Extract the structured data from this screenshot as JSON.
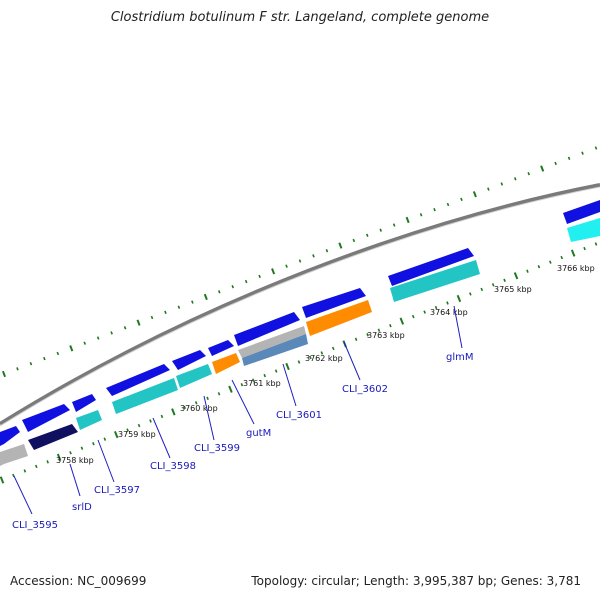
{
  "title": "Clostridium botulinum F str. Langeland, complete genome",
  "footer": {
    "accession": "Accession: NC_009699",
    "summary": "Topology: circular; Length: 3,995,387 bp; Genes: 3,781"
  },
  "colors": {
    "backbone": "#7a7a7a",
    "tick": "#1f7a1f",
    "forward_gene": "#1010e0",
    "cyan_gene": "#22c4c4",
    "bright_cyan_gene": "#22f0f0",
    "orange_gene": "#ff8c00",
    "gray_gene": "#b4b4b4",
    "steelblue_gene": "#5a88b8",
    "navy_gene": "#101060",
    "label": "#1a1ab8"
  },
  "kbp_labels": [
    "3758 kbp",
    "3759 kbp",
    "3760 kbp",
    "3761 kbp",
    "3762 kbp",
    "3763 kbp",
    "3764 kbp",
    "3765 kbp",
    "3766 kbp"
  ],
  "gene_labels": [
    "CLI_3595",
    "srlD",
    "CLI_3597",
    "CLI_3598",
    "CLI_3599",
    "gutM",
    "CLI_3601",
    "CLI_3602",
    "glmM"
  ]
}
